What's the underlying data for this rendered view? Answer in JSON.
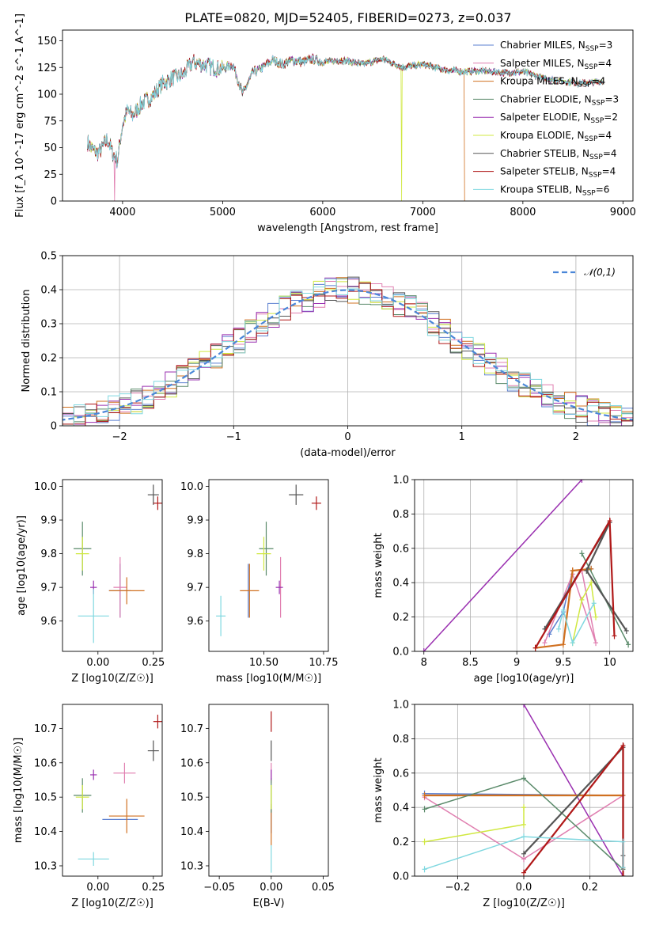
{
  "figure": {
    "title": "PLATE=0820, MJD=52405, FIBERID=0273, z=0.037"
  },
  "models": [
    {
      "name": "Chabrier MILES",
      "nssp": "3",
      "color": "#5b7fd0"
    },
    {
      "name": "Salpeter MILES",
      "nssp": "4",
      "color": "#e07fb0"
    },
    {
      "name": "Kroupa MILES",
      "nssp": "4",
      "color": "#d07020"
    },
    {
      "name": "Chabrier ELODIE",
      "nssp": "3",
      "color": "#5a8a6a"
    },
    {
      "name": "Salpeter ELODIE",
      "nssp": "2",
      "color": "#9a30b0"
    },
    {
      "name": "Kroupa ELODIE",
      "nssp": "4",
      "color": "#d0e840"
    },
    {
      "name": "Chabrier STELIB",
      "nssp": "4",
      "color": "#555555"
    },
    {
      "name": "Salpeter STELIB",
      "nssp": "4",
      "color": "#b01818"
    },
    {
      "name": "Kroupa STELIB",
      "nssp": "6",
      "color": "#80d8e0"
    }
  ],
  "chart_data": [
    {
      "id": "spectrum",
      "type": "line",
      "xlabel": "wavelength [Angstrom, rest frame]",
      "ylabel": "Flux [f_λ 10^-17 erg cm^-2 s^-1 A^-1]",
      "xlim": [
        3400,
        9100
      ],
      "ylim": [
        0,
        160
      ],
      "xticks": [
        4000,
        5000,
        6000,
        7000,
        8000,
        9000
      ],
      "yticks": [
        0,
        25,
        50,
        75,
        100,
        125,
        150
      ],
      "continuum": {
        "x": [
          3650,
          3700,
          3750,
          3800,
          3850,
          3900,
          3950,
          4000,
          4050,
          4100,
          4200,
          4300,
          4400,
          4500,
          4600,
          4700,
          4800,
          4900,
          5000,
          5100,
          5200,
          5300,
          5400,
          5500,
          5600,
          5700,
          5800,
          5900,
          6000,
          6200,
          6400,
          6600,
          6800,
          7000,
          7200,
          7400,
          7600,
          7800,
          8000,
          8200,
          8400,
          8600,
          8800
        ],
        "y": [
          55,
          48,
          45,
          50,
          58,
          45,
          38,
          72,
          85,
          80,
          92,
          98,
          110,
          115,
          118,
          130,
          128,
          125,
          124,
          128,
          100,
          120,
          125,
          132,
          128,
          132,
          130,
          133,
          130,
          132,
          128,
          133,
          125,
          128,
          123,
          121,
          122,
          120,
          121,
          115,
          112,
          110,
          112
        ]
      },
      "drops": [
        {
          "model": "Salpeter MILES",
          "x": 3920
        },
        {
          "model": "Kroupa ELODIE",
          "x": 6790
        },
        {
          "model": "Kroupa MILES",
          "x": 7420
        }
      ],
      "grid": false,
      "legend": "upper-right"
    },
    {
      "id": "residuals",
      "type": "line",
      "xlabel": "(data-model)/error",
      "ylabel": "Normed distribution",
      "xlim": [
        -2.5,
        2.5
      ],
      "ylim": [
        0,
        0.5
      ],
      "xticks": [
        -2,
        -1,
        0,
        1,
        2
      ],
      "yticks": [
        0.0,
        0.1,
        0.2,
        0.3,
        0.4,
        0.5
      ],
      "gaussian_label": "𝒩(0,1)",
      "grid": true,
      "legend": "upper-right"
    },
    {
      "id": "age-vs-z",
      "type": "scatter",
      "xlabel": "Z [log10(Z/Z☉)]",
      "ylabel": "age [log10(age/yr)]",
      "xlim": [
        -0.16,
        0.29
      ],
      "ylim": [
        9.51,
        10.02
      ],
      "xticks": [
        -0.0,
        0.25
      ],
      "xticklabels": [
        "0.00",
        "0.25"
      ],
      "yticks": [
        9.6,
        9.7,
        9.8,
        9.9,
        10.0
      ],
      "points": [
        {
          "model": "Chabrier MILES",
          "x": 0.1,
          "y": 9.69,
          "xe": 0.05,
          "ye": 0.08
        },
        {
          "model": "Salpeter MILES",
          "x": 0.1,
          "y": 9.7,
          "xe": 0.03,
          "ye": 0.09
        },
        {
          "model": "Kroupa MILES",
          "x": 0.13,
          "y": 9.69,
          "xe": 0.08,
          "ye": 0.04
        },
        {
          "model": "Chabrier ELODIE",
          "x": -0.07,
          "y": 9.815,
          "xe": 0.04,
          "ye": 0.08
        },
        {
          "model": "Salpeter ELODIE",
          "x": -0.02,
          "y": 9.7,
          "xe": 0.015,
          "ye": 0.02
        },
        {
          "model": "Kroupa ELODIE",
          "x": -0.07,
          "y": 9.8,
          "xe": 0.03,
          "ye": 0.05
        },
        {
          "model": "Chabrier STELIB",
          "x": 0.25,
          "y": 9.975,
          "xe": 0.025,
          "ye": 0.03
        },
        {
          "model": "Salpeter STELIB",
          "x": 0.27,
          "y": 9.95,
          "xe": 0.02,
          "ye": 0.02
        },
        {
          "model": "Kroupa STELIB",
          "x": -0.02,
          "y": 9.615,
          "xe": 0.07,
          "ye": 0.08
        }
      ]
    },
    {
      "id": "age-vs-mass",
      "type": "scatter",
      "xlabel": "mass [log10(M/M☉)]",
      "ylabel": "",
      "xlim": [
        10.27,
        10.77
      ],
      "ylim": [
        9.51,
        10.02
      ],
      "xticks": [
        10.5,
        10.75
      ],
      "xticklabels": [
        "10.50",
        "10.75"
      ],
      "yticks": [
        9.6,
        9.7,
        9.8,
        9.9,
        10.0
      ],
      "points": [
        {
          "model": "Chabrier MILES",
          "x": 10.435,
          "y": 9.69,
          "xe": 0.0,
          "ye": 0.08
        },
        {
          "model": "Salpeter MILES",
          "x": 10.57,
          "y": 9.7,
          "xe": 0.0,
          "ye": 0.09
        },
        {
          "model": "Kroupa MILES",
          "x": 10.44,
          "y": 9.69,
          "xe": 0.04,
          "ye": 0.08
        },
        {
          "model": "Chabrier ELODIE",
          "x": 10.51,
          "y": 9.815,
          "xe": 0.03,
          "ye": 0.08
        },
        {
          "model": "Salpeter ELODIE",
          "x": 10.565,
          "y": 9.7,
          "xe": 0.015,
          "ye": 0.02
        },
        {
          "model": "Kroupa ELODIE",
          "x": 10.5,
          "y": 9.8,
          "xe": 0.03,
          "ye": 0.05
        },
        {
          "model": "Chabrier STELIB",
          "x": 10.635,
          "y": 9.975,
          "xe": 0.03,
          "ye": 0.03
        },
        {
          "model": "Salpeter STELIB",
          "x": 10.72,
          "y": 9.95,
          "xe": 0.02,
          "ye": 0.02
        },
        {
          "model": "Kroupa STELIB",
          "x": 10.32,
          "y": 9.615,
          "xe": 0.02,
          "ye": 0.06
        }
      ]
    },
    {
      "id": "weight-vs-age",
      "type": "line",
      "xlabel": "age [log10(age/yr)]",
      "ylabel": "mass weight",
      "xlim": [
        7.9,
        10.25
      ],
      "ylim": [
        0,
        1.0
      ],
      "xticks": [
        8.0,
        8.5,
        9.0,
        9.5,
        10.0
      ],
      "yticks": [
        0.0,
        0.2,
        0.4,
        0.6,
        0.8,
        1.0
      ],
      "grid": true,
      "series": [
        {
          "model": "Salpeter ELODIE",
          "x": [
            8.0,
            9.7
          ],
          "y": [
            0.0,
            1.0
          ]
        },
        {
          "model": "Chabrier MILES",
          "x": [
            9.35,
            9.5,
            9.6,
            9.8
          ],
          "y": [
            0.1,
            0.23,
            0.47,
            0.48
          ]
        },
        {
          "model": "Salpeter MILES",
          "x": [
            9.3,
            9.6,
            9.85,
            9.7
          ],
          "y": [
            0.05,
            0.45,
            0.05,
            0.47
          ]
        },
        {
          "model": "Kroupa MILES",
          "x": [
            9.2,
            9.5,
            9.6,
            9.8,
            9.6
          ],
          "y": [
            0.02,
            0.04,
            0.47,
            0.48,
            0.47
          ]
        },
        {
          "model": "Chabrier ELODIE",
          "x": [
            9.7,
            10.2
          ],
          "y": [
            0.57,
            0.04
          ]
        },
        {
          "model": "Kroupa ELODIE",
          "x": [
            9.6,
            9.7,
            9.8,
            9.85
          ],
          "y": [
            0.05,
            0.3,
            0.4,
            0.2
          ]
        },
        {
          "model": "Chabrier STELIB",
          "x": [
            9.3,
            10.0,
            9.75,
            10.18
          ],
          "y": [
            0.13,
            0.75,
            0.47,
            0.12
          ]
        },
        {
          "model": "Salpeter STELIB",
          "x": [
            9.2,
            10.0,
            10.05
          ],
          "y": [
            0.02,
            0.76,
            0.09
          ]
        },
        {
          "model": "Kroupa STELIB",
          "x": [
            9.45,
            9.5,
            9.6,
            9.83
          ],
          "y": [
            0.13,
            0.24,
            0.05,
            0.28
          ]
        }
      ]
    },
    {
      "id": "mass-vs-z",
      "type": "scatter",
      "xlabel": "Z [log10(Z/Z☉)]",
      "ylabel": "mass [log10(M/M☉)]",
      "xlim": [
        -0.16,
        0.29
      ],
      "ylim": [
        10.27,
        10.77
      ],
      "xticks": [
        -0.0,
        0.25
      ],
      "xticklabels": [
        "0.00",
        "0.25"
      ],
      "yticks": [
        10.3,
        10.4,
        10.5,
        10.6,
        10.7
      ],
      "points": [
        {
          "model": "Chabrier MILES",
          "x": 0.1,
          "y": 10.435,
          "xe": 0.08,
          "ye": 0.0
        },
        {
          "model": "Salpeter MILES",
          "x": 0.12,
          "y": 10.57,
          "xe": 0.05,
          "ye": 0.03
        },
        {
          "model": "Kroupa MILES",
          "x": 0.13,
          "y": 10.445,
          "xe": 0.08,
          "ye": 0.05
        },
        {
          "model": "Chabrier ELODIE",
          "x": -0.07,
          "y": 10.505,
          "xe": 0.04,
          "ye": 0.05
        },
        {
          "model": "Salpeter ELODIE",
          "x": -0.02,
          "y": 10.565,
          "xe": 0.015,
          "ye": 0.015
        },
        {
          "model": "Kroupa ELODIE",
          "x": -0.07,
          "y": 10.5,
          "xe": 0.03,
          "ye": 0.035
        },
        {
          "model": "Chabrier STELIB",
          "x": 0.25,
          "y": 10.635,
          "xe": 0.025,
          "ye": 0.03
        },
        {
          "model": "Salpeter STELIB",
          "x": 0.27,
          "y": 10.72,
          "xe": 0.02,
          "ye": 0.02
        },
        {
          "model": "Kroupa STELIB",
          "x": -0.02,
          "y": 10.32,
          "xe": 0.07,
          "ye": 0.02
        }
      ]
    },
    {
      "id": "mass-vs-ebv",
      "type": "scatter",
      "xlabel": "E(B-V)",
      "ylabel": "",
      "xlim": [
        -0.06,
        0.055
      ],
      "ylim": [
        10.27,
        10.77
      ],
      "xticks": [
        -0.05,
        0.0,
        0.05
      ],
      "xticklabels": [
        "−0.05",
        "0.00",
        "0.05"
      ],
      "yticks": [
        10.3,
        10.4,
        10.5,
        10.6,
        10.7
      ],
      "points": [
        {
          "model": "Chabrier MILES",
          "x": 0.0,
          "y": 10.435,
          "xe": 0,
          "ye": 0.04
        },
        {
          "model": "Salpeter MILES",
          "x": 0.0,
          "y": 10.57,
          "xe": 0,
          "ye": 0.03
        },
        {
          "model": "Kroupa MILES",
          "x": 0.0,
          "y": 10.42,
          "xe": 0,
          "ye": 0.06
        },
        {
          "model": "Chabrier ELODIE",
          "x": 0.0,
          "y": 10.505,
          "xe": 0,
          "ye": 0.05
        },
        {
          "model": "Salpeter ELODIE",
          "x": 0.0,
          "y": 10.565,
          "xe": 0,
          "ye": 0.015
        },
        {
          "model": "Kroupa ELODIE",
          "x": 0.0,
          "y": 10.5,
          "xe": 0,
          "ye": 0.035
        },
        {
          "model": "Chabrier STELIB",
          "x": 0.0,
          "y": 10.635,
          "xe": 0,
          "ye": 0.03
        },
        {
          "model": "Salpeter STELIB",
          "x": 0.0,
          "y": 10.72,
          "xe": 0,
          "ye": 0.03
        },
        {
          "model": "Kroupa STELIB",
          "x": 0.0,
          "y": 10.32,
          "xe": 0,
          "ye": 0.04
        }
      ]
    },
    {
      "id": "weight-vs-z",
      "type": "line",
      "xlabel": "Z [log10(Z/Z☉)]",
      "ylabel": "mass weight",
      "xlim": [
        -0.33,
        0.33
      ],
      "ylim": [
        0,
        1.0
      ],
      "xticks": [
        -0.2,
        0.0,
        0.2
      ],
      "xticklabels": [
        "−0.2",
        "0.0",
        "0.2"
      ],
      "yticks": [
        0.0,
        0.2,
        0.4,
        0.6,
        0.8,
        1.0
      ],
      "grid": true,
      "series": [
        {
          "model": "Salpeter ELODIE",
          "x": [
            0.0,
            0.3
          ],
          "y": [
            1.0,
            0.0
          ]
        },
        {
          "model": "Chabrier MILES",
          "x": [
            -0.3,
            0.3
          ],
          "y": [
            0.48,
            0.47
          ]
        },
        {
          "model": "Salpeter MILES",
          "x": [
            -0.3,
            0.0,
            0.3
          ],
          "y": [
            0.46,
            0.1,
            0.47
          ]
        },
        {
          "model": "Kroupa MILES",
          "x": [
            -0.3,
            0.3
          ],
          "y": [
            0.47,
            0.47
          ]
        },
        {
          "model": "Chabrier ELODIE",
          "x": [
            -0.3,
            0.0,
            0.3
          ],
          "y": [
            0.39,
            0.57,
            0.04
          ]
        },
        {
          "model": "Kroupa ELODIE",
          "x": [
            -0.3,
            0.0,
            0.0
          ],
          "y": [
            0.2,
            0.3,
            0.4
          ]
        },
        {
          "model": "Chabrier STELIB",
          "x": [
            0.0,
            0.3,
            0.3,
            0.3
          ],
          "y": [
            0.13,
            0.75,
            0.12,
            0.05
          ]
        },
        {
          "model": "Salpeter STELIB",
          "x": [
            0.0,
            0.3,
            0.3
          ],
          "y": [
            0.02,
            0.76,
            0.0
          ]
        },
        {
          "model": "Kroupa STELIB",
          "x": [
            -0.3,
            0.0,
            0.3,
            0.3
          ],
          "y": [
            0.04,
            0.23,
            0.2,
            0.05
          ]
        }
      ]
    }
  ]
}
